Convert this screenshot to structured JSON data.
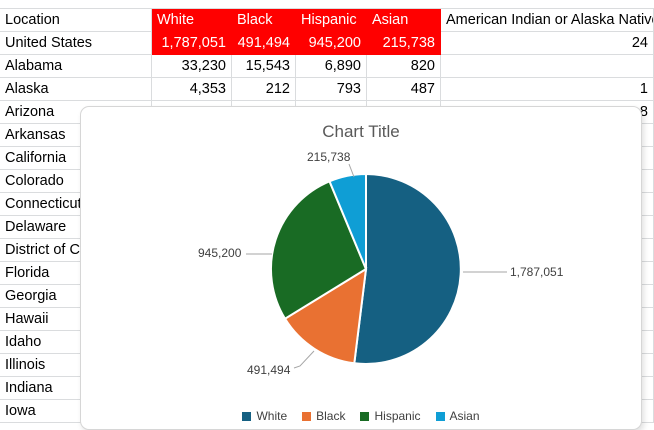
{
  "table": {
    "header_fill_color": "#FF0000",
    "header_text_color": "#FFFFFF",
    "columns": [
      "Location",
      "White",
      "Black",
      "Hispanic",
      "Asian",
      "American Indian or Alaska Native"
    ],
    "rows": [
      {
        "location": "United States",
        "white": "1,787,051",
        "black": "491,494",
        "hispanic": "945,200",
        "asian": "215,738",
        "other": "24",
        "highlighted": true
      },
      {
        "location": "Alabama",
        "white": "33,230",
        "black": "15,543",
        "hispanic": "6,890",
        "asian": "820",
        "other": "",
        "highlighted": false
      },
      {
        "location": "Alaska",
        "white": "4,353",
        "black": "212",
        "hispanic": "793",
        "asian": "487",
        "other": "1",
        "highlighted": false
      },
      {
        "location": "Arizona",
        "white": "",
        "black": "",
        "hispanic": "",
        "asian": "",
        "other": "8",
        "highlighted": false
      },
      {
        "location": "Arkansas",
        "white": "",
        "black": "",
        "hispanic": "",
        "asian": "",
        "other": "",
        "highlighted": false
      },
      {
        "location": "California",
        "white": "",
        "black": "",
        "hispanic": "",
        "asian": "",
        "other": "",
        "highlighted": false
      },
      {
        "location": "Colorado",
        "white": "",
        "black": "",
        "hispanic": "",
        "asian": "",
        "other": "",
        "highlighted": false
      },
      {
        "location": "Connecticut",
        "white": "",
        "black": "",
        "hispanic": "",
        "asian": "",
        "other": "",
        "highlighted": false
      },
      {
        "location": "Delaware",
        "white": "",
        "black": "",
        "hispanic": "",
        "asian": "",
        "other": "",
        "highlighted": false
      },
      {
        "location": "District of Columbia",
        "white": "",
        "black": "",
        "hispanic": "",
        "asian": "",
        "other": "",
        "highlighted": false
      },
      {
        "location": "Florida",
        "white": "",
        "black": "",
        "hispanic": "",
        "asian": "",
        "other": "",
        "highlighted": false
      },
      {
        "location": "Georgia",
        "white": "",
        "black": "",
        "hispanic": "",
        "asian": "",
        "other": "",
        "highlighted": false
      },
      {
        "location": "Hawaii",
        "white": "",
        "black": "",
        "hispanic": "",
        "asian": "",
        "other": "",
        "highlighted": false
      },
      {
        "location": "Idaho",
        "white": "",
        "black": "",
        "hispanic": "",
        "asian": "",
        "other": "",
        "highlighted": false
      },
      {
        "location": "Illinois",
        "white": "",
        "black": "",
        "hispanic": "",
        "asian": "",
        "other": "",
        "highlighted": false
      },
      {
        "location": "Indiana",
        "white": "",
        "black": "",
        "hispanic": "",
        "asian": "",
        "other": "",
        "highlighted": false
      },
      {
        "location": "Iowa",
        "white": "",
        "black": "",
        "hispanic": "",
        "asian": "",
        "other": "",
        "highlighted": false
      }
    ]
  },
  "chart_data": {
    "type": "pie",
    "title": "Chart Title",
    "categories": [
      "White",
      "Black",
      "Hispanic",
      "Asian"
    ],
    "values": [
      1787051,
      491494,
      945200,
      215738
    ],
    "values_formatted": [
      "1,787,051",
      "491,494",
      "945,200",
      "215,738"
    ],
    "colors": [
      "#156082",
      "#E97132",
      "#196B24",
      "#0F9ED5"
    ],
    "legend_position": "bottom",
    "data_labels": true
  }
}
